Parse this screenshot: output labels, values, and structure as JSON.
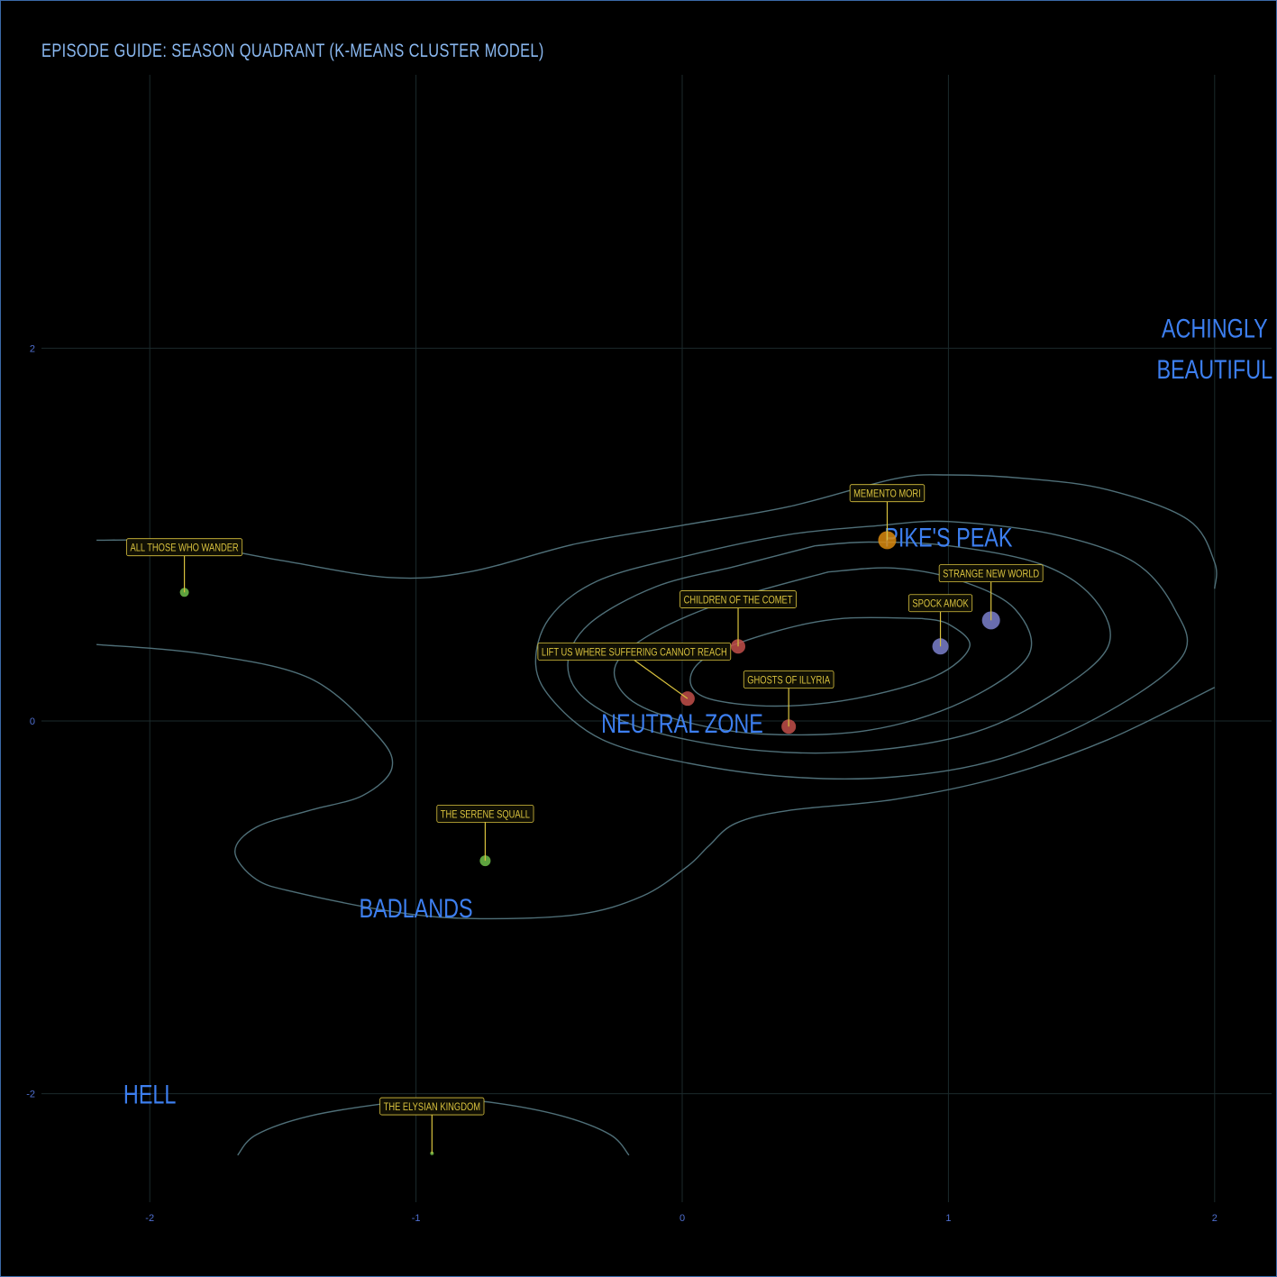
{
  "title": "EPISODE GUIDE: SEASON QUADRANT (K-MEANS CLUSTER MODEL)",
  "colors": {
    "background": "#000000",
    "frame": "#3b6aa8",
    "title": "#8ab8f0",
    "tick": "#4f6fd0",
    "zone_label": "#3d7ff0",
    "episode_label": "#d9c23e",
    "grid": "#1b2a2c",
    "contour": "#4f6f78"
  },
  "chart_data": {
    "type": "scatter",
    "title": "EPISODE GUIDE: SEASON QUADRANT (K-MEANS CLUSTER MODEL)",
    "xlabel": "",
    "ylabel": "",
    "xlim": [
      -2.4,
      2.25
    ],
    "ylim": [
      -2.6,
      3.55
    ],
    "grid": true,
    "legend": "none",
    "x_ticks": [
      -2,
      -1,
      0,
      1,
      2
    ],
    "x_tick_labels": [
      "-2",
      "-1",
      "0",
      "1",
      "2"
    ],
    "y_ticks": [
      -2,
      0,
      2
    ],
    "y_tick_labels": [
      "-2",
      "0",
      "2"
    ],
    "cluster_colors": {
      "1": "#6ec04a",
      "2": "#c24f4a",
      "3": "#7b80cc",
      "4": "#d98a0e"
    },
    "points": [
      {
        "label": "ALL THOSE WHO WANDER",
        "x": -1.87,
        "y": 0.69,
        "cluster": 1,
        "size": 5,
        "label_x": -1.87,
        "label_y": 0.93
      },
      {
        "label": "THE SERENE SQUALL",
        "x": -0.74,
        "y": -0.75,
        "cluster": 1,
        "size": 6,
        "label_x": -0.74,
        "label_y": -0.5
      },
      {
        "label": "THE ELYSIAN KINGDOM",
        "x": -0.94,
        "y": -2.32,
        "cluster": 1,
        "size": 2,
        "label_x": -0.94,
        "label_y": -2.07
      },
      {
        "label": "CHILDREN OF THE COMET",
        "x": 0.21,
        "y": 0.4,
        "cluster": 2,
        "size": 8,
        "label_x": 0.21,
        "label_y": 0.65
      },
      {
        "label": "LIFT US WHERE SUFFERING CANNOT REACH",
        "x": 0.02,
        "y": 0.12,
        "cluster": 2,
        "size": 8,
        "label_x": -0.18,
        "label_y": 0.37
      },
      {
        "label": "GHOSTS OF ILLYRIA",
        "x": 0.4,
        "y": -0.03,
        "cluster": 2,
        "size": 8,
        "label_x": 0.4,
        "label_y": 0.22
      },
      {
        "label": "SPOCK AMOK",
        "x": 0.97,
        "y": 0.4,
        "cluster": 3,
        "size": 9,
        "label_x": 0.97,
        "label_y": 0.63
      },
      {
        "label": "STRANGE NEW WORLD",
        "x": 1.16,
        "y": 0.54,
        "cluster": 3,
        "size": 10,
        "label_x": 1.16,
        "label_y": 0.79
      },
      {
        "label": "MEMENTO MORI",
        "x": 0.77,
        "y": 0.97,
        "cluster": 4,
        "size": 10,
        "label_x": 0.77,
        "label_y": 1.22
      }
    ],
    "zone_labels": [
      {
        "text": "PIKE'S PEAK",
        "x": 1.0,
        "y": 0.99,
        "anchor": "middle"
      },
      {
        "text": "NEUTRAL ZONE",
        "x": 0.0,
        "y": -0.01,
        "anchor": "middle"
      },
      {
        "text": "BADLANDS",
        "x": -1.0,
        "y": -1.0,
        "anchor": "middle"
      },
      {
        "text": "HELL",
        "x": -2.0,
        "y": -2.0,
        "anchor": "middle"
      },
      {
        "text": "ACHINGLY",
        "x": 2.0,
        "y": 2.11,
        "anchor": "middle"
      },
      {
        "text": "BEAUTIFUL",
        "x": 2.0,
        "y": 1.89,
        "anchor": "middle"
      }
    ],
    "contours": [
      [
        [
          -2.2,
          0.97
        ],
        [
          -1.9,
          0.96
        ],
        [
          -1.5,
          0.86
        ],
        [
          -1.1,
          0.77
        ],
        [
          -0.8,
          0.8
        ],
        [
          -0.4,
          0.95
        ],
        [
          0.0,
          1.05
        ],
        [
          0.4,
          1.15
        ],
        [
          0.8,
          1.3
        ],
        [
          1.0,
          1.32
        ],
        [
          1.3,
          1.3
        ],
        [
          1.6,
          1.24
        ],
        [
          1.9,
          1.08
        ],
        [
          2.0,
          0.85
        ],
        [
          2.0,
          0.71
        ]
      ],
      [
        [
          -2.2,
          0.41
        ],
        [
          -1.8,
          0.36
        ],
        [
          -1.4,
          0.23
        ],
        [
          -1.15,
          -0.07
        ],
        [
          -1.09,
          -0.25
        ],
        [
          -1.2,
          -0.4
        ],
        [
          -1.4,
          -0.48
        ],
        [
          -1.6,
          -0.57
        ],
        [
          -1.68,
          -0.7
        ],
        [
          -1.6,
          -0.85
        ],
        [
          -1.45,
          -0.92
        ],
        [
          -1.1,
          -1.02
        ],
        [
          -0.8,
          -1.06
        ],
        [
          -0.4,
          -1.04
        ],
        [
          -0.15,
          -0.94
        ],
        [
          0.02,
          -0.78
        ],
        [
          0.1,
          -0.67
        ],
        [
          0.2,
          -0.55
        ],
        [
          0.4,
          -0.48
        ],
        [
          0.8,
          -0.42
        ],
        [
          1.2,
          -0.3
        ],
        [
          1.6,
          -0.1
        ],
        [
          2.0,
          0.18
        ]
      ],
      [
        [
          0.75,
          1.05
        ],
        [
          0.4,
          1.0
        ],
        [
          0.0,
          0.88
        ],
        [
          -0.32,
          0.75
        ],
        [
          -0.5,
          0.55
        ],
        [
          -0.55,
          0.3
        ],
        [
          -0.48,
          0.1
        ],
        [
          -0.3,
          -0.1
        ],
        [
          0.0,
          -0.22
        ],
        [
          0.4,
          -0.3
        ],
        [
          0.8,
          -0.3
        ],
        [
          1.2,
          -0.2
        ],
        [
          1.6,
          0.05
        ],
        [
          1.88,
          0.35
        ],
        [
          1.85,
          0.6
        ],
        [
          1.7,
          0.85
        ],
        [
          1.4,
          1.0
        ],
        [
          1.0,
          1.07
        ],
        [
          0.75,
          1.05
        ]
      ],
      [
        [
          0.5,
          0.94
        ],
        [
          0.2,
          0.83
        ],
        [
          -0.1,
          0.72
        ],
        [
          -0.35,
          0.52
        ],
        [
          -0.43,
          0.3
        ],
        [
          -0.35,
          0.1
        ],
        [
          -0.1,
          -0.06
        ],
        [
          0.3,
          -0.16
        ],
        [
          0.7,
          -0.16
        ],
        [
          1.1,
          -0.06
        ],
        [
          1.4,
          0.15
        ],
        [
          1.6,
          0.4
        ],
        [
          1.55,
          0.65
        ],
        [
          1.35,
          0.84
        ],
        [
          1.0,
          0.94
        ],
        [
          0.7,
          0.96
        ],
        [
          0.5,
          0.94
        ]
      ],
      [
        [
          0.55,
          0.8
        ],
        [
          0.2,
          0.66
        ],
        [
          -0.1,
          0.48
        ],
        [
          -0.25,
          0.3
        ],
        [
          -0.2,
          0.12
        ],
        [
          0.0,
          0.0
        ],
        [
          0.3,
          -0.07
        ],
        [
          0.7,
          -0.05
        ],
        [
          1.05,
          0.1
        ],
        [
          1.3,
          0.35
        ],
        [
          1.25,
          0.6
        ],
        [
          1.05,
          0.75
        ],
        [
          0.8,
          0.82
        ],
        [
          0.55,
          0.8
        ]
      ],
      [
        [
          0.9,
          0.55
        ],
        [
          0.6,
          0.55
        ],
        [
          0.35,
          0.48
        ],
        [
          0.1,
          0.35
        ],
        [
          0.03,
          0.22
        ],
        [
          0.1,
          0.12
        ],
        [
          0.35,
          0.08
        ],
        [
          0.65,
          0.12
        ],
        [
          0.95,
          0.24
        ],
        [
          1.08,
          0.4
        ],
        [
          1.0,
          0.52
        ],
        [
          0.9,
          0.55
        ]
      ],
      [
        [
          -1.67,
          -2.33
        ],
        [
          -1.6,
          -2.22
        ],
        [
          -1.4,
          -2.12
        ],
        [
          -1.1,
          -2.05
        ],
        [
          -0.9,
          -2.03
        ],
        [
          -0.7,
          -2.05
        ],
        [
          -0.45,
          -2.12
        ],
        [
          -0.27,
          -2.22
        ],
        [
          -0.2,
          -2.33
        ]
      ]
    ]
  }
}
